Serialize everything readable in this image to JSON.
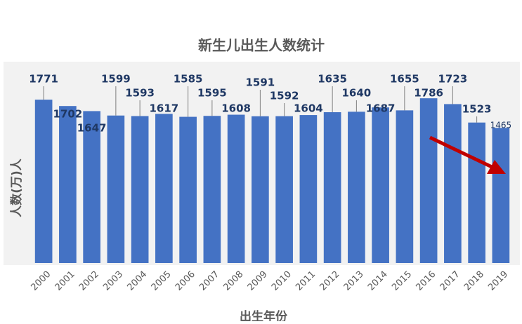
{
  "chart_data": {
    "type": "bar",
    "title": "新生儿出生人数统计",
    "y_label": "人数(万)人",
    "x_label": "出生年份",
    "categories": [
      "2000",
      "2001",
      "2002",
      "2003",
      "2004",
      "2005",
      "2006",
      "2007",
      "2008",
      "2009",
      "2010",
      "2011",
      "2012",
      "2013",
      "2014",
      "2015",
      "2016",
      "2017",
      "2018",
      "2019"
    ],
    "values": [
      1771,
      1702,
      1647,
      1599,
      1593,
      1617,
      1585,
      1595,
      1608,
      1591,
      1592,
      1604,
      1635,
      1640,
      1687,
      1655,
      1786,
      1723,
      1523,
      1465
    ],
    "color": "#4472c4",
    "ylim": [
      0,
      2000
    ]
  }
}
